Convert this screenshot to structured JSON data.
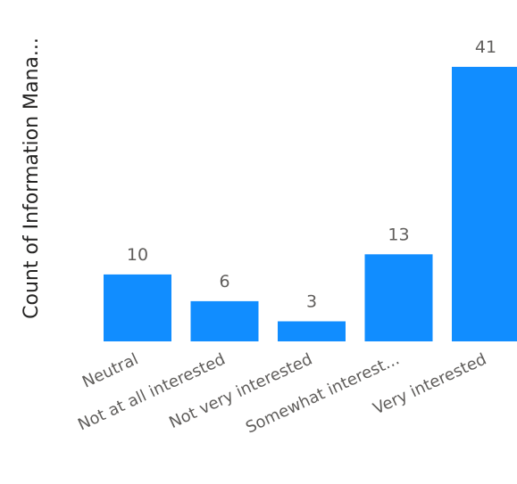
{
  "chart_data": {
    "type": "bar",
    "categories": [
      "Neutral",
      "Not at all interested",
      "Not very interested",
      "Somewhat interest...",
      "Very interested"
    ],
    "values": [
      10,
      6,
      3,
      13,
      41
    ],
    "ylabel": "Count of Information Mana...",
    "xlabel": "",
    "title": "",
    "ylim": [
      0,
      41
    ],
    "grid": false,
    "legend": "none",
    "data_labels": true,
    "bar_color": "#118dff"
  }
}
